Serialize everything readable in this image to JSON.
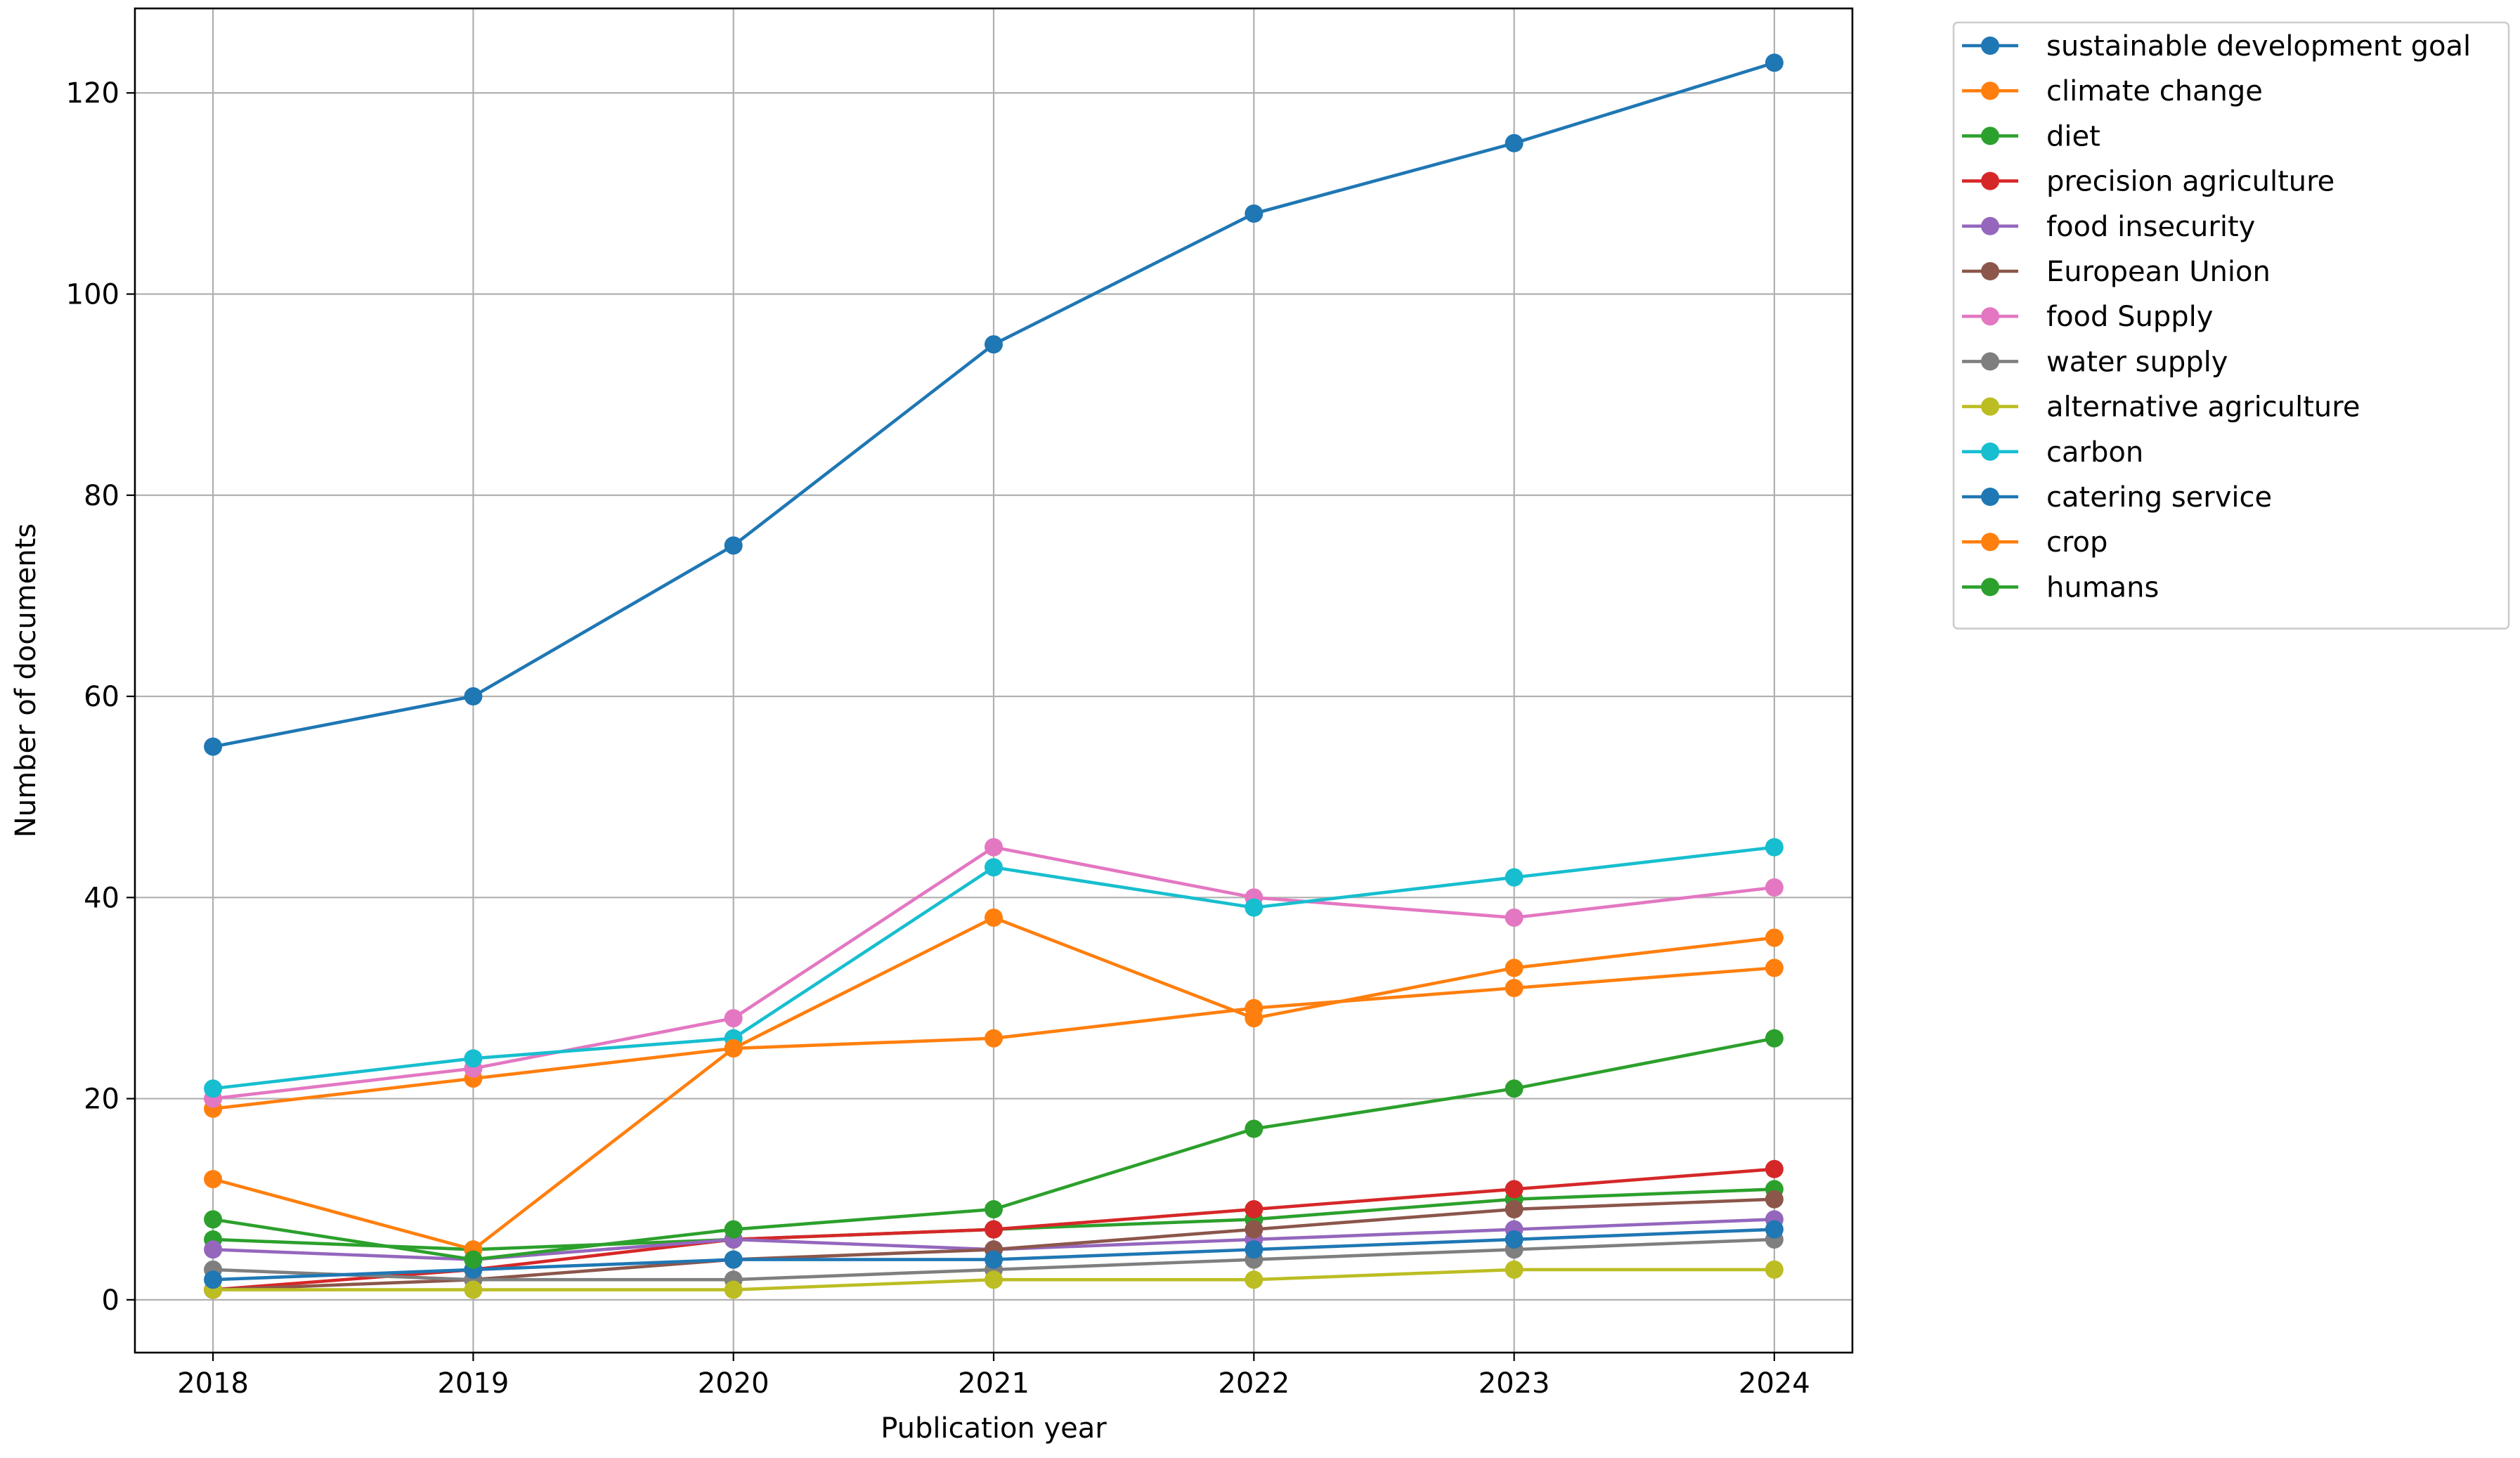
{
  "chart_data": {
    "type": "line",
    "xlabel": "Publication year",
    "ylabel": "Number of documents",
    "x": [
      2018,
      2019,
      2020,
      2021,
      2022,
      2023,
      2024
    ],
    "xlim": [
      2017.7,
      2024.3
    ],
    "ylim": [
      -5.25,
      128.4
    ],
    "yticks": [
      0,
      20,
      40,
      60,
      80,
      100,
      120
    ],
    "grid": true,
    "legend_position": "outside upper right",
    "series": [
      {
        "name": "sustainable development goal",
        "color": "#1f77b4",
        "values": [
          55,
          60,
          75,
          95,
          108,
          115,
          123
        ]
      },
      {
        "name": "climate change",
        "color": "#ff7f0e",
        "values": [
          19,
          22,
          25,
          26,
          29,
          31,
          33
        ]
      },
      {
        "name": "diet",
        "color": "#2ca02c",
        "values": [
          6,
          5,
          6,
          7,
          8,
          10,
          11
        ]
      },
      {
        "name": "precision agriculture",
        "color": "#d62728",
        "values": [
          1,
          3,
          6,
          7,
          9,
          11,
          13
        ]
      },
      {
        "name": "food insecurity",
        "color": "#9467bd",
        "values": [
          5,
          4,
          6,
          5,
          6,
          7,
          8
        ]
      },
      {
        "name": "European Union",
        "color": "#8c564b",
        "values": [
          1,
          2,
          4,
          5,
          7,
          9,
          10
        ]
      },
      {
        "name": "food Supply",
        "color": "#e377c2",
        "values": [
          20,
          23,
          28,
          45,
          40,
          38,
          41
        ]
      },
      {
        "name": "water supply",
        "color": "#7f7f7f",
        "values": [
          3,
          2,
          2,
          3,
          4,
          5,
          6
        ]
      },
      {
        "name": "alternative agriculture",
        "color": "#bcbd22",
        "values": [
          1,
          1,
          1,
          2,
          2,
          3,
          3
        ]
      },
      {
        "name": "carbon",
        "color": "#17becf",
        "values": [
          21,
          24,
          26,
          43,
          39,
          42,
          45
        ]
      },
      {
        "name": "catering service",
        "color": "#1f77b4",
        "values": [
          2,
          3,
          4,
          4,
          5,
          6,
          7
        ]
      },
      {
        "name": "crop",
        "color": "#ff7f0e",
        "values": [
          12,
          5,
          25,
          38,
          28,
          33,
          36
        ]
      },
      {
        "name": "humans",
        "color": "#2ca02c",
        "values": [
          8,
          4,
          7,
          9,
          17,
          21,
          26
        ]
      }
    ]
  }
}
